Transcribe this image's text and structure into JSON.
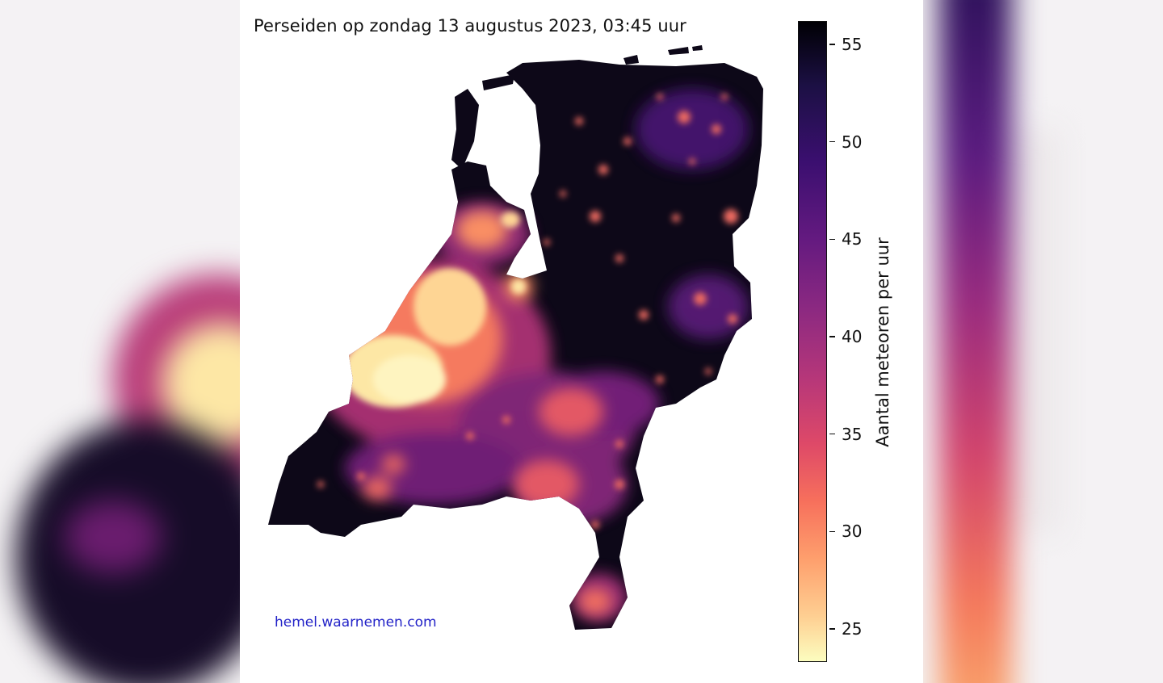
{
  "title": "Perseiden op zondag 13 augustus 2023, 03:45 uur",
  "credit": "hemel.waarnemen.com",
  "colorbar": {
    "label": "Aantal meteoren per uur",
    "ticks": [
      {
        "value": 55,
        "label": "55"
      },
      {
        "value": 50,
        "label": "50"
      },
      {
        "value": 45,
        "label": "45"
      },
      {
        "value": 40,
        "label": "40"
      },
      {
        "value": 35,
        "label": "35"
      },
      {
        "value": 30,
        "label": "30"
      },
      {
        "value": 25,
        "label": "25"
      }
    ],
    "min": 23.3,
    "max": 56.2,
    "colormap": "magma_r"
  },
  "colors": {
    "dark": "#0d0818",
    "bright": "#fdf0b0",
    "credit": "#2323c8"
  }
}
